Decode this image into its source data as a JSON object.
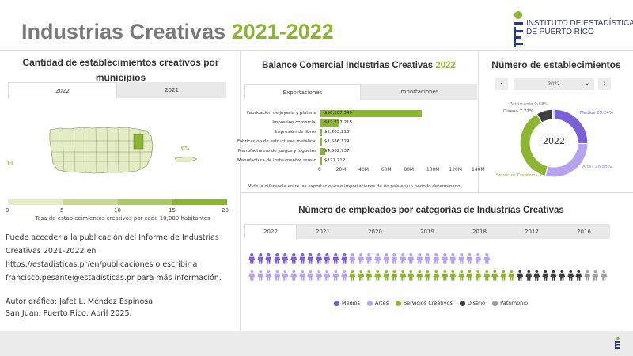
{
  "header": {
    "title_main": "Industrias Creativas",
    "title_year": "2021-2022",
    "logo_line1": "INSTITUTO DE ESTADÍSTICAS",
    "logo_line2": "DE PUERTO RICO"
  },
  "map_section": {
    "title": "Cantidad de establecimientos creativos por municipios",
    "tabs": [
      "2022",
      "2021"
    ],
    "legend_ticks": [
      "0",
      "5",
      "10",
      "15",
      "20"
    ],
    "legend_colors": [
      "#e4ecc5",
      "#c8d98f",
      "#aac865",
      "#8cb534"
    ],
    "legend_caption": "Tasa de establecimientos creativos por cada 10,000 habitantes"
  },
  "info": {
    "text": "Puede acceder a la publicación del Informe de Industrias Creativas 2021-2022 en https://estadisticas.pr/en/publicaciones o escribir a francisco.pesante@estadisticas.pr para más información.",
    "credit_line1": "Autor gráfico: Jafet L. Méndez Espinosa",
    "credit_line2": "San Juan, Puerto Rico. Abril 2025."
  },
  "balance": {
    "title_main": "Balance Comercial Industrias Creativas",
    "title_year": "2022",
    "tabs": [
      "Exportaciones",
      "Importaciones"
    ],
    "note": "Mide la diferencia entre las exportaciones e importaciones de un país en un período determinado."
  },
  "establishments": {
    "title": "Número de establecimientos",
    "selected_year": "2022",
    "prev": "‹",
    "next": "›",
    "center_label": "2022",
    "labels": {
      "medios": "Medios 25.24%",
      "artes": "Artes 28.85%",
      "servicios": "Servicios Creativos 3...",
      "diseno": "Diseño 7.72%",
      "patrimonio": "Patrimonio 0.68%"
    }
  },
  "employees": {
    "title": "Número de empleados por categorías de Industrias Creativas",
    "tabs": [
      "2022",
      "2021",
      "2020",
      "2019",
      "2018",
      "2017",
      "2016"
    ],
    "legend": [
      "Medios",
      "Artes",
      "Servicios Creativos",
      "Diseño",
      "Patrimonio"
    ],
    "row1_counts": [
      12,
      17,
      0,
      0,
      0
    ],
    "row2_counts": [
      0,
      12,
      20,
      8,
      3
    ]
  },
  "colors": {
    "accent_green": "#8cb534",
    "medios": "#7b5fd6",
    "artes": "#b5a3ee",
    "servicios": "#8cb534",
    "diseno": "#3f3f3f",
    "patrimonio": "#9e9e9e",
    "brand_navy": "#2a3a7c"
  },
  "chart_data": [
    {
      "type": "bar",
      "orientation": "horizontal",
      "title": "Balance Comercial Industrias Creativas 2022",
      "categories": [
        "Fabricación de joyería y platería",
        "Impresión comercial",
        "Impresión de libros",
        "Fabricación de estructuras metálicas...",
        "Manufacturero de juegos y juguetes",
        "Manufactura de instrumentos musicales"
      ],
      "values": [
        90207349,
        17777215,
        2203216,
        1586129,
        4562737,
        122712
      ],
      "value_labels": [
        "$90,207,349",
        "$17,777,215",
        "$2,203,216",
        "$1,586,129",
        "$4,562,737",
        "$122,712"
      ],
      "xlim": [
        0,
        140000000
      ],
      "x_ticks": [
        "0",
        "20M",
        "40M",
        "60M",
        "80M",
        "100M",
        "120M",
        "140M"
      ],
      "color": "#8cb534"
    },
    {
      "type": "pie",
      "donut": true,
      "title": "Número de establecimientos",
      "categories": [
        "Medios",
        "Artes",
        "Servicios Creativos",
        "Diseño",
        "Patrimonio"
      ],
      "values": [
        25.24,
        28.85,
        37.51,
        7.72,
        0.68
      ],
      "colors": [
        "#7b5fd6",
        "#b5a3ee",
        "#8cb534",
        "#3f3f3f",
        "#9e9e9e"
      ]
    }
  ]
}
